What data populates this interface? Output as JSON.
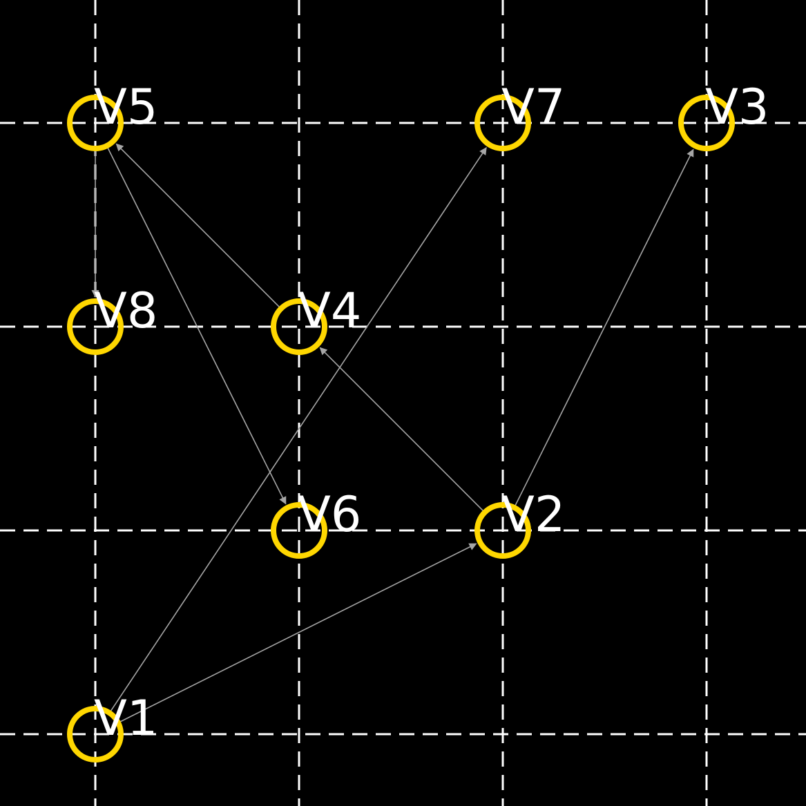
{
  "graph": {
    "colors": {
      "background": "#000000",
      "grid": "#ffffff",
      "node": "#ffd700",
      "edge": "#a6a6a6",
      "label": "#ffffff"
    },
    "grid": {
      "columns": 4,
      "rows": 4,
      "style": "dashed"
    },
    "nodes": [
      {
        "id": "V1",
        "label": "V1",
        "col": 0,
        "row": 3
      },
      {
        "id": "V2",
        "label": "V2",
        "col": 2,
        "row": 2
      },
      {
        "id": "V3",
        "label": "V3",
        "col": 3,
        "row": 0
      },
      {
        "id": "V4",
        "label": "V4",
        "col": 1,
        "row": 1
      },
      {
        "id": "V5",
        "label": "V5",
        "col": 0,
        "row": 0
      },
      {
        "id": "V6",
        "label": "V6",
        "col": 1,
        "row": 2
      },
      {
        "id": "V7",
        "label": "V7",
        "col": 2,
        "row": 0
      },
      {
        "id": "V8",
        "label": "V8",
        "col": 0,
        "row": 1
      }
    ],
    "edges": [
      {
        "from": "V1",
        "to": "V2"
      },
      {
        "from": "V1",
        "to": "V7"
      },
      {
        "from": "V2",
        "to": "V3"
      },
      {
        "from": "V2",
        "to": "V4"
      },
      {
        "from": "V4",
        "to": "V5"
      },
      {
        "from": "V5",
        "to": "V6"
      },
      {
        "from": "V5",
        "to": "V8"
      }
    ]
  }
}
